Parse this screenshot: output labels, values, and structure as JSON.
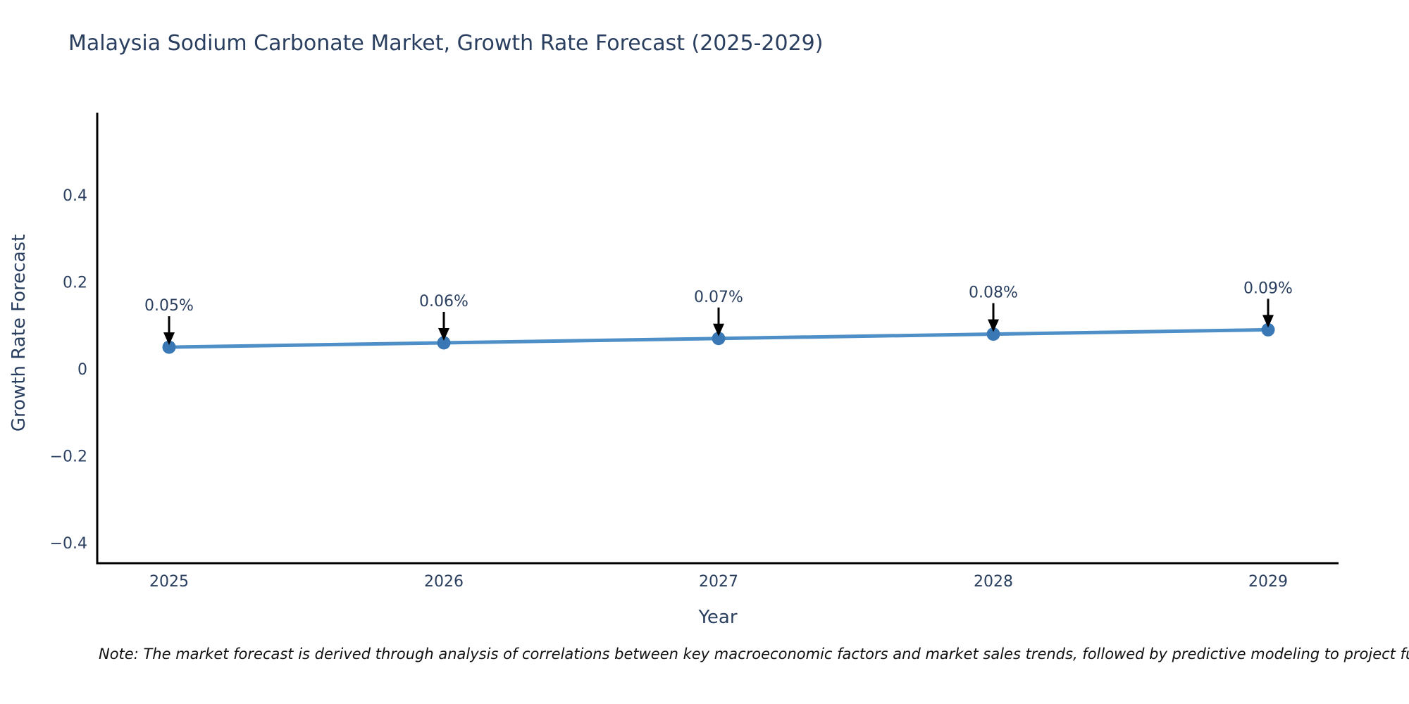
{
  "title": "Malaysia Sodium Carbonate Market, Growth Rate Forecast (2025-2029)",
  "note": "Note: The market forecast is derived through analysis of correlations between key macroeconomic factors and market sales trends, followed by predictive modeling to project future sales.",
  "chart_data": {
    "type": "line",
    "title": "Malaysia Sodium Carbonate Market, Growth Rate Forecast (2025-2029)",
    "xlabel": "Year",
    "ylabel": "Growth Rate Forecast",
    "categories": [
      "2025",
      "2026",
      "2027",
      "2028",
      "2029"
    ],
    "series": [
      {
        "name": "Growth Rate Forecast",
        "values": [
          0.05,
          0.06,
          0.07,
          0.08,
          0.09
        ],
        "point_labels": [
          "0.05%",
          "0.06%",
          "0.07%",
          "0.08%",
          "0.09%"
        ]
      }
    ],
    "ylim": [
      -0.447,
      0.589
    ],
    "yticks": [
      -0.4,
      -0.2,
      0,
      0.2,
      0.4
    ],
    "ytick_labels": [
      "−0.4",
      "−0.2",
      "0",
      "0.2",
      "0.4"
    ],
    "grid": false,
    "legend": "none",
    "annotations_have_arrows": true,
    "colors": {
      "line": "#4e8fc7",
      "marker": "#3a78b5",
      "axis": "#000000",
      "arrow": "#000000",
      "text": "#2a3f5f"
    }
  }
}
